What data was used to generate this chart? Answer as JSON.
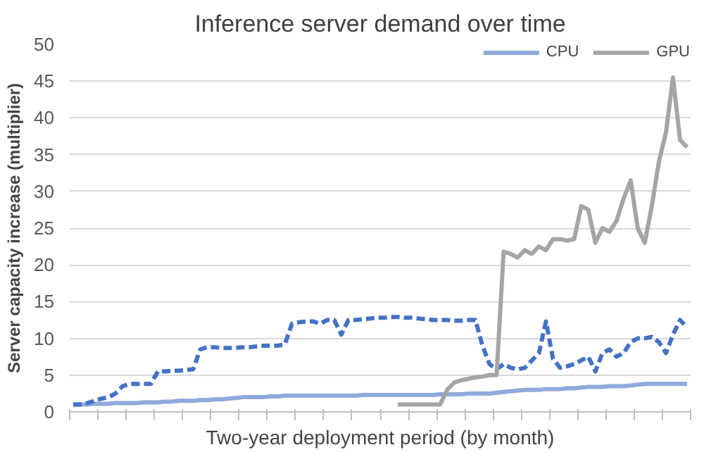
{
  "chart_data": {
    "type": "line",
    "title": "Inference server demand over time",
    "xlabel": "Two-year deployment period (by month)",
    "ylabel": "Server capacity increase (multiplier)",
    "categories": [
      null,
      null,
      null,
      null,
      null,
      null,
      null,
      null,
      null,
      null,
      null,
      null,
      null,
      null,
      null,
      null,
      null,
      null,
      null,
      null,
      null,
      null,
      null,
      null,
      null,
      null,
      null,
      null,
      null,
      null,
      null,
      null,
      null,
      null,
      null,
      null,
      null,
      null,
      null,
      null,
      null,
      null,
      null,
      null,
      null,
      null,
      null,
      null,
      null,
      null,
      null,
      null,
      null,
      null,
      null,
      null,
      null,
      null,
      null,
      null,
      null,
      null,
      null,
      null,
      null,
      null,
      null,
      null,
      null,
      null,
      null,
      null,
      null,
      null,
      null,
      null,
      null,
      null,
      null,
      null,
      null,
      null,
      null,
      null,
      null,
      null,
      null,
      null
    ],
    "series": [
      {
        "name": "CPU",
        "color": "#8faadc",
        "line_style": "solid",
        "values": [
          1,
          1,
          1,
          1.1,
          1.1,
          1.1,
          1.2,
          1.2,
          1.2,
          1.2,
          1.3,
          1.3,
          1.3,
          1.4,
          1.4,
          1.5,
          1.5,
          1.5,
          1.6,
          1.6,
          1.7,
          1.7,
          1.8,
          1.9,
          2,
          2,
          2,
          2,
          2.1,
          2.1,
          2.2,
          2.2,
          2.2,
          2.2,
          2.2,
          2.2,
          2.2,
          2.2,
          2.2,
          2.2,
          2.2,
          2.3,
          2.3,
          2.3,
          2.3,
          2.3,
          2.3,
          2.3,
          2.3,
          2.3,
          2.3,
          2.3,
          2.4,
          2.4,
          2.4,
          2.4,
          2.5,
          2.5,
          2.5,
          2.5,
          2.6,
          2.7,
          2.8,
          2.9,
          3,
          3,
          3,
          3.1,
          3.1,
          3.1,
          3.2,
          3.2,
          3.3,
          3.4,
          3.4,
          3.4,
          3.5,
          3.5,
          3.5,
          3.6,
          3.7,
          3.8,
          3.8,
          3.8,
          3.8,
          3.8,
          3.8,
          3.8
        ]
      },
      {
        "color": "#4472c4",
        "line_style": "dashed",
        "values": [
          1,
          1,
          1.2,
          1.5,
          1.8,
          2,
          2.5,
          3.5,
          3.8,
          3.8,
          3.8,
          3.8,
          5.5,
          5.5,
          5.6,
          5.6,
          5.7,
          5.8,
          8.5,
          8.8,
          8.8,
          8.7,
          8.7,
          8.7,
          8.8,
          8.8,
          8.9,
          9,
          9,
          9,
          9.2,
          12,
          12.2,
          12.3,
          12.3,
          12,
          12.5,
          12.5,
          10.5,
          12.5,
          12.5,
          12.6,
          12.7,
          12.8,
          12.8,
          12.9,
          12.9,
          12.8,
          12.8,
          12.7,
          12.6,
          12.5,
          12.5,
          12.5,
          12.4,
          12.4,
          12.5,
          12.5,
          9,
          6.5,
          5.8,
          6.5,
          6,
          5.8,
          6,
          7,
          8,
          12.3,
          7.2,
          6,
          6.2,
          6.5,
          7,
          7.5,
          5.5,
          8,
          8.5,
          7.5,
          8,
          9.5,
          10,
          10,
          10.2,
          9.5,
          8,
          10.5,
          12.5,
          11.5
        ]
      },
      {
        "name": "GPU",
        "color": "#a5a5a5",
        "line_style": "solid",
        "values": [
          null,
          null,
          null,
          null,
          null,
          null,
          null,
          null,
          null,
          null,
          null,
          null,
          null,
          null,
          null,
          null,
          null,
          null,
          null,
          null,
          null,
          null,
          null,
          null,
          null,
          null,
          null,
          null,
          null,
          null,
          null,
          null,
          null,
          null,
          null,
          null,
          null,
          null,
          null,
          null,
          null,
          null,
          null,
          null,
          null,
          null,
          1,
          1,
          1,
          1,
          1,
          1,
          1,
          3,
          4,
          4.3,
          4.5,
          4.7,
          4.8,
          5,
          5,
          21.8,
          21.5,
          21,
          22,
          21.5,
          22.5,
          22,
          23.5,
          23.5,
          23.3,
          23.5,
          28,
          27.5,
          23,
          25,
          24.5,
          26,
          29,
          31.5,
          25,
          23,
          28,
          34,
          38,
          45.5,
          37,
          36
        ]
      }
    ],
    "ylim": [
      0,
      50
    ],
    "yticks": [
      0,
      5,
      10,
      15,
      20,
      25,
      30,
      35,
      40,
      45,
      50
    ],
    "grid": "y",
    "legend": "top right",
    "tick_labels": "y"
  }
}
